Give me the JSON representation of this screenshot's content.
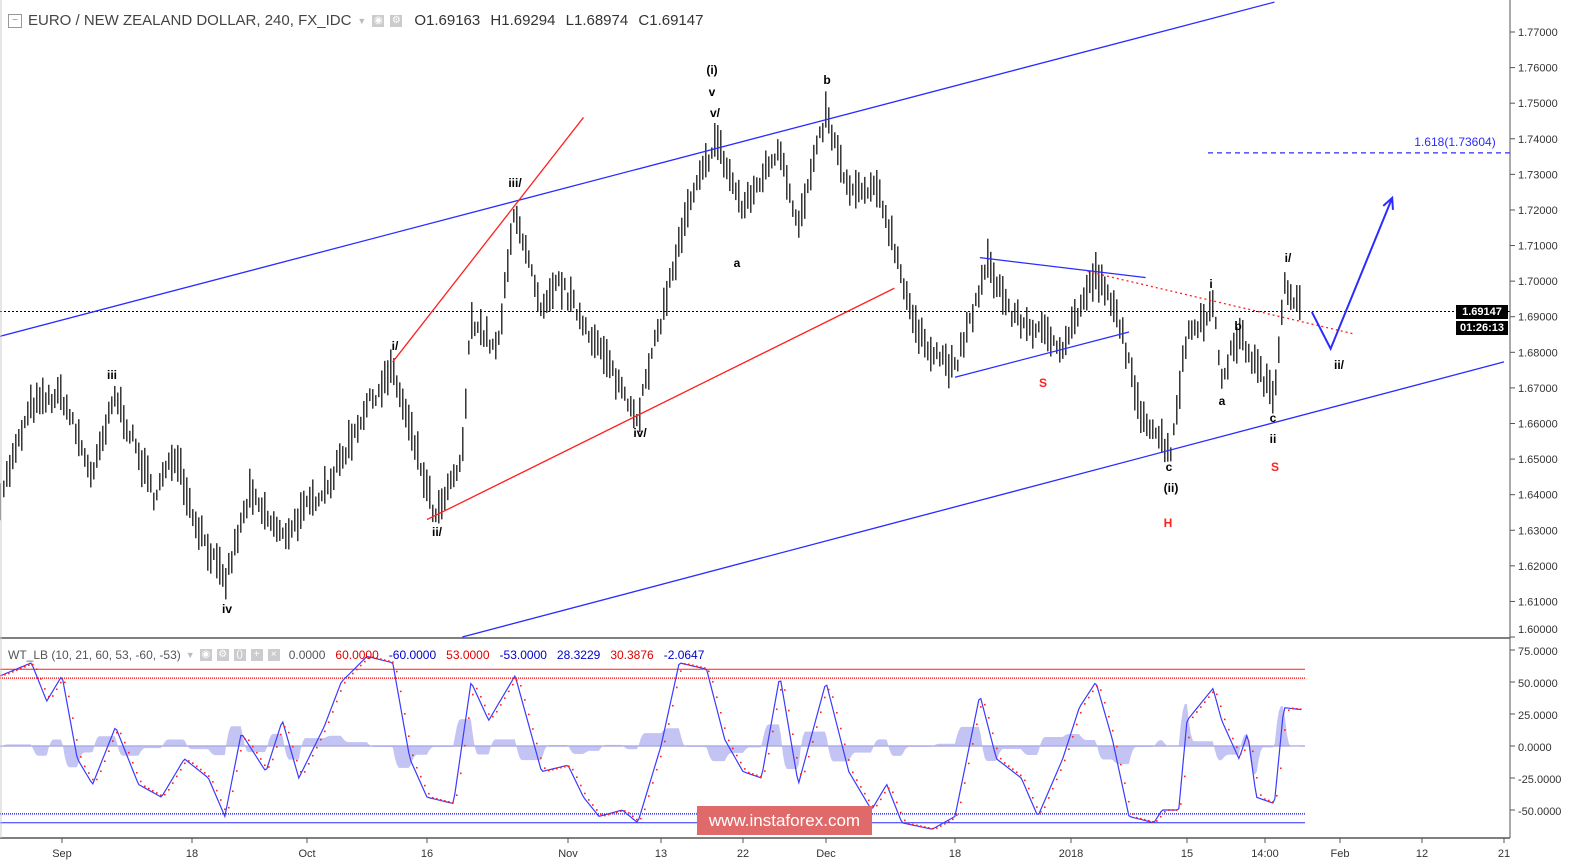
{
  "header": {
    "symbol": "EURO / NEW ZEALAND DOLLAR, 240, FX_IDC",
    "open": "O1.69163",
    "high": "H1.69294",
    "low": "L1.68974",
    "close": "C1.69147"
  },
  "price_tag": {
    "price": "1.69147",
    "countdown": "01:26:13"
  },
  "indicator": {
    "name": "WT_LB (10, 21, 60, 53, -60, -53)",
    "values": [
      "0.0000",
      "60.0000",
      "-60.0000",
      "53.0000",
      "-53.0000",
      "28.3229",
      "30.3876",
      "-2.0647"
    ],
    "colors": [
      "#555555",
      "#e00000",
      "#0000cc",
      "#e00000",
      "#0000cc",
      "#0000cc",
      "#e00000",
      "#0000cc"
    ]
  },
  "watermark": "www.instaforex.com",
  "wave_labels": {
    "w_i_paren": "(i)",
    "w_v": "v",
    "w_v_slash": "v/",
    "w_b_top": "b",
    "w_iii_slash": "iii/",
    "w_i_slash_1": "i/",
    "w_iii": "iii",
    "w_iv": "iv",
    "w_ii_slash_1": "ii/",
    "w_iv_slash": "iv/",
    "w_a_1": "a",
    "w_S_1": "S",
    "w_c_1": "c",
    "w_ii_paren": "(ii)",
    "w_H": "H",
    "w_i": "i",
    "w_b_2": "b",
    "w_a_2": "a",
    "w_c_2": "c",
    "w_ii": "ii",
    "w_S_2": "S",
    "w_i_slash_2": "i/",
    "w_ii_slash_2": "ii/"
  },
  "fib_label": "1.618(1.73604)",
  "colors": {
    "bars": "#000000",
    "channel": "#2b2bff",
    "red": "#ff2020",
    "wt1": "#3b3bff",
    "wt2": "#ff2020",
    "hist": "#aaaaf0",
    "watermark": "#e06a6a"
  },
  "chart_data": [
    {
      "type": "bar",
      "title": "EURO / NEW ZEALAND DOLLAR, 240, FX_IDC",
      "ylim": [
        1.6,
        1.775
      ],
      "y_ticks": [
        "1.77000",
        "1.76000",
        "1.75000",
        "1.74000",
        "1.73000",
        "1.72000",
        "1.71000",
        "1.70000",
        "1.69000",
        "1.68000",
        "1.67000",
        "1.66000",
        "1.65000",
        "1.64000",
        "1.63000",
        "1.62000",
        "1.61000",
        "1.60000"
      ],
      "x_ticks": [
        {
          "label": "Sep",
          "date": "2017-09-01"
        },
        {
          "label": "18",
          "date": "2017-09-18"
        },
        {
          "label": "Oct",
          "date": "2017-10-02"
        },
        {
          "label": "16",
          "date": "2017-10-16"
        },
        {
          "label": "Nov",
          "date": "2017-11-01"
        },
        {
          "label": "13",
          "date": "2017-11-13"
        },
        {
          "label": "22",
          "date": "2017-11-22"
        },
        {
          "label": "Dec",
          "date": "2017-12-01"
        },
        {
          "label": "18",
          "date": "2017-12-18"
        },
        {
          "label": "2018",
          "date": "2018-01-01"
        },
        {
          "label": "15",
          "date": "2018-01-15"
        },
        {
          "label": "14:00",
          "date": "2018-01-24"
        },
        {
          "label": "Feb",
          "date": "2018-02-01"
        },
        {
          "label": "12",
          "date": "2018-02-12"
        },
        {
          "label": "21",
          "date": "2018-02-21"
        }
      ],
      "price_path": [
        [
          "2017-08-24",
          1.64
        ],
        [
          "2017-08-28",
          1.665
        ],
        [
          "2017-09-01",
          1.668
        ],
        [
          "2017-09-05",
          1.645
        ],
        [
          "2017-09-08",
          1.668
        ],
        [
          "2017-09-13",
          1.64
        ],
        [
          "2017-09-16",
          1.652
        ],
        [
          "2017-09-18",
          1.635
        ],
        [
          "2017-09-22",
          1.615
        ],
        [
          "2017-09-25",
          1.64
        ],
        [
          "2017-09-29",
          1.628
        ],
        [
          "2017-10-05",
          1.645
        ],
        [
          "2017-10-09",
          1.665
        ],
        [
          "2017-10-12",
          1.675
        ],
        [
          "2017-10-15",
          1.65
        ],
        [
          "2017-10-17",
          1.633
        ],
        [
          "2017-10-20",
          1.65
        ],
        [
          "2017-10-21",
          1.69
        ],
        [
          "2017-10-24",
          1.68
        ],
        [
          "2017-10-26",
          1.721
        ],
        [
          "2017-10-29",
          1.69
        ],
        [
          "2017-10-31",
          1.7
        ],
        [
          "2017-11-04",
          1.685
        ],
        [
          "2017-11-10",
          1.662
        ],
        [
          "2017-11-14",
          1.7
        ],
        [
          "2017-11-16",
          1.72
        ],
        [
          "2017-11-19",
          1.74
        ],
        [
          "2017-11-22",
          1.72
        ],
        [
          "2017-11-26",
          1.738
        ],
        [
          "2017-11-28",
          1.715
        ],
        [
          "2017-12-01",
          1.747
        ],
        [
          "2017-12-04",
          1.725
        ],
        [
          "2017-12-08",
          1.725
        ],
        [
          "2017-12-10",
          1.71
        ],
        [
          "2017-12-13",
          1.685
        ],
        [
          "2017-12-18",
          1.675
        ],
        [
          "2017-12-22",
          1.705
        ],
        [
          "2017-12-25",
          1.69
        ],
        [
          "2017-12-31",
          1.682
        ],
        [
          "2018-01-04",
          1.702
        ],
        [
          "2018-01-07",
          1.688
        ],
        [
          "2018-01-09",
          1.665
        ],
        [
          "2018-01-13",
          1.652
        ],
        [
          "2018-01-15",
          1.685
        ],
        [
          "2018-01-18",
          1.693
        ],
        [
          "2018-01-19",
          1.673
        ],
        [
          "2018-01-21",
          1.685
        ],
        [
          "2018-01-25",
          1.667
        ],
        [
          "2018-01-26",
          1.7
        ],
        [
          "2018-01-28",
          1.6915
        ]
      ],
      "last_price": 1.69147,
      "fib_level": 1.73604,
      "lines": [
        {
          "name": "upper-channel",
          "color": "blue",
          "points": [
            [
              "2017-08-23",
              1.684
            ],
            [
              "2018-01-25",
              1.7784
            ]
          ]
        },
        {
          "name": "lower-channel",
          "color": "blue",
          "points": [
            [
              "2017-10-20",
              1.6
            ],
            [
              "2018-02-21",
              1.6773
            ]
          ]
        },
        {
          "name": "red-trend-steep",
          "color": "red",
          "points": [
            [
              "2017-10-12",
              1.6773
            ],
            [
              "2017-11-03",
              1.746
            ]
          ]
        },
        {
          "name": "red-trend-support",
          "color": "red",
          "points": [
            [
              "2017-10-16",
              1.633
            ],
            [
              "2017-12-10",
              1.698
            ]
          ]
        },
        {
          "name": "triangle-upper",
          "color": "blue",
          "points": [
            [
              "2017-12-21",
              1.7066
            ],
            [
              "2018-01-10",
              1.701
            ]
          ]
        },
        {
          "name": "triangle-lower",
          "color": "blue",
          "points": [
            [
              "2017-12-18",
              1.673
            ],
            [
              "2018-01-08",
              1.6857
            ]
          ]
        },
        {
          "name": "red-dotted-trend",
          "color": "red",
          "dotted": true,
          "points": [
            [
              "2018-01-03",
              1.7027
            ],
            [
              "2018-02-03",
              1.6851
            ]
          ]
        },
        {
          "name": "forecast-path",
          "color": "blue",
          "arrow": true,
          "points": [
            [
              "2018-01-29",
              1.6913
            ],
            [
              "2018-01-31",
              1.681
            ],
            [
              "2018-02-08",
              1.7234
            ]
          ]
        }
      ]
    },
    {
      "type": "line",
      "title": "WT_LB (10, 21, 60, 53, -60, -53)",
      "ylim": [
        -62,
        78
      ],
      "y_ticks": [
        "75.0000",
        "50.0000",
        "25.0000",
        "0.0000",
        "-25.0000",
        "-50.0000"
      ],
      "levels": [
        60,
        53,
        0,
        -53,
        -60
      ],
      "wt1": [
        [
          "2017-08-24",
          55
        ],
        [
          "2017-08-28",
          65
        ],
        [
          "2017-08-30",
          35
        ],
        [
          "2017-09-01",
          55
        ],
        [
          "2017-09-03",
          -10
        ],
        [
          "2017-09-05",
          -30
        ],
        [
          "2017-09-08",
          15
        ],
        [
          "2017-09-11",
          -30
        ],
        [
          "2017-09-14",
          -40
        ],
        [
          "2017-09-17",
          -10
        ],
        [
          "2017-09-20",
          -25
        ],
        [
          "2017-09-22",
          -55
        ],
        [
          "2017-09-24",
          10
        ],
        [
          "2017-09-27",
          -20
        ],
        [
          "2017-09-29",
          20
        ],
        [
          "2017-10-01",
          -25
        ],
        [
          "2017-10-04",
          15
        ],
        [
          "2017-10-06",
          50
        ],
        [
          "2017-10-09",
          70
        ],
        [
          "2017-10-12",
          65
        ],
        [
          "2017-10-14",
          -10
        ],
        [
          "2017-10-16",
          -40
        ],
        [
          "2017-10-19",
          -45
        ],
        [
          "2017-10-21",
          50
        ],
        [
          "2017-10-23",
          20
        ],
        [
          "2017-10-26",
          55
        ],
        [
          "2017-10-28",
          5
        ],
        [
          "2017-10-29",
          -20
        ],
        [
          "2017-11-01",
          -15
        ],
        [
          "2017-11-03",
          -40
        ],
        [
          "2017-11-05",
          -55
        ],
        [
          "2017-11-08",
          -50
        ],
        [
          "2017-11-10",
          -60
        ],
        [
          "2017-11-13",
          0
        ],
        [
          "2017-11-15",
          65
        ],
        [
          "2017-11-18",
          60
        ],
        [
          "2017-11-20",
          5
        ],
        [
          "2017-11-22",
          -20
        ],
        [
          "2017-11-24",
          -25
        ],
        [
          "2017-11-26",
          55
        ],
        [
          "2017-11-28",
          -30
        ],
        [
          "2017-12-01",
          50
        ],
        [
          "2017-12-04",
          -20
        ],
        [
          "2017-12-07",
          -50
        ],
        [
          "2017-12-09",
          -30
        ],
        [
          "2017-12-11",
          -60
        ],
        [
          "2017-12-15",
          -65
        ],
        [
          "2017-12-18",
          -55
        ],
        [
          "2017-12-21",
          40
        ],
        [
          "2017-12-23",
          -10
        ],
        [
          "2017-12-26",
          -25
        ],
        [
          "2017-12-28",
          -55
        ],
        [
          "2017-12-31",
          -10
        ],
        [
          "2018-01-02",
          30
        ],
        [
          "2018-01-04",
          50
        ],
        [
          "2018-01-06",
          5
        ],
        [
          "2018-01-08",
          -55
        ],
        [
          "2018-01-11",
          -60
        ],
        [
          "2018-01-12",
          -50
        ],
        [
          "2018-01-14",
          -50
        ],
        [
          "2018-01-15",
          20
        ],
        [
          "2018-01-18",
          45
        ],
        [
          "2018-01-19",
          20
        ],
        [
          "2018-01-21",
          -10
        ],
        [
          "2018-01-22",
          10
        ],
        [
          "2018-01-23",
          -40
        ],
        [
          "2018-01-25",
          -45
        ],
        [
          "2018-01-26",
          30
        ],
        [
          "2018-01-28",
          28.3
        ]
      ]
    }
  ]
}
